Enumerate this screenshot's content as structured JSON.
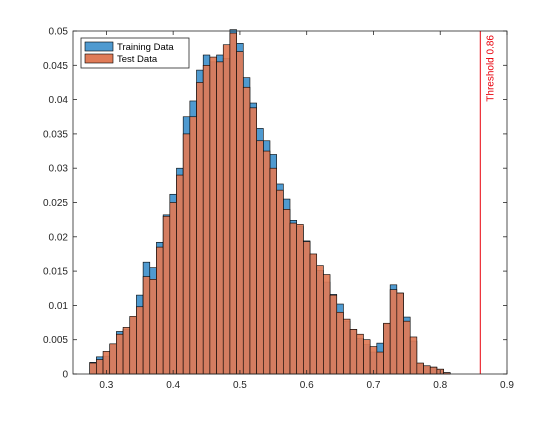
{
  "chart_data": {
    "type": "bar",
    "xlim": [
      0.25,
      0.9
    ],
    "ylim": [
      0,
      0.05
    ],
    "xticks": [
      "0.3",
      "0.4",
      "0.5",
      "0.6",
      "0.7",
      "0.8",
      "0.9"
    ],
    "yticks": [
      "0",
      "0.005",
      "0.01",
      "0.015",
      "0.02",
      "0.025",
      "0.03",
      "0.035",
      "0.04",
      "0.045",
      "0.05"
    ],
    "bin_edges_start": 0.275,
    "bin_width": 0.01,
    "series": [
      {
        "name": "Training Data",
        "color": "#4f9ad0",
        "values": [
          0.0017,
          0.0025,
          0.0026,
          0.0043,
          0.0062,
          0.0065,
          0.0082,
          0.0115,
          0.0163,
          0.0155,
          0.0192,
          0.0232,
          0.0262,
          0.03,
          0.0375,
          0.0398,
          0.0443,
          0.0465,
          0.0455,
          0.0465,
          0.046,
          0.0502,
          0.0482,
          0.0432,
          0.0395,
          0.0358,
          0.034,
          0.032,
          0.0277,
          0.0255,
          0.0224,
          0.0215,
          0.0194,
          0.0174,
          0.0151,
          0.0134,
          0.0116,
          0.0102,
          0.0077,
          0.0065,
          0.0052,
          0.0043,
          0.0032,
          0.0045,
          0.0073,
          0.013,
          0.0118,
          0.0083,
          0.0048,
          0.0015,
          0.0012,
          0.001,
          0.0007,
          0.0002
        ]
      },
      {
        "name": "Test Data",
        "color": "#e07b57",
        "values": [
          0.0016,
          0.0021,
          0.0033,
          0.0044,
          0.0058,
          0.0068,
          0.0084,
          0.0098,
          0.0142,
          0.0138,
          0.0185,
          0.023,
          0.025,
          0.029,
          0.035,
          0.0375,
          0.0425,
          0.045,
          0.0462,
          0.0455,
          0.048,
          0.0497,
          0.047,
          0.0418,
          0.0388,
          0.034,
          0.0325,
          0.03,
          0.0268,
          0.024,
          0.022,
          0.0218,
          0.0193,
          0.0175,
          0.0158,
          0.0145,
          0.0115,
          0.009,
          0.008,
          0.0065,
          0.0058,
          0.005,
          0.004,
          0.0032,
          0.0074,
          0.0123,
          0.0118,
          0.0077,
          0.0054,
          0.0016,
          0.0012,
          0.001,
          0.0007,
          0.0002
        ]
      }
    ],
    "threshold": {
      "value": 0.86,
      "label": "Threshold 0.86",
      "color": "#e8000b"
    },
    "legend_position": "top-left",
    "title": "",
    "xlabel": "",
    "ylabel": ""
  }
}
